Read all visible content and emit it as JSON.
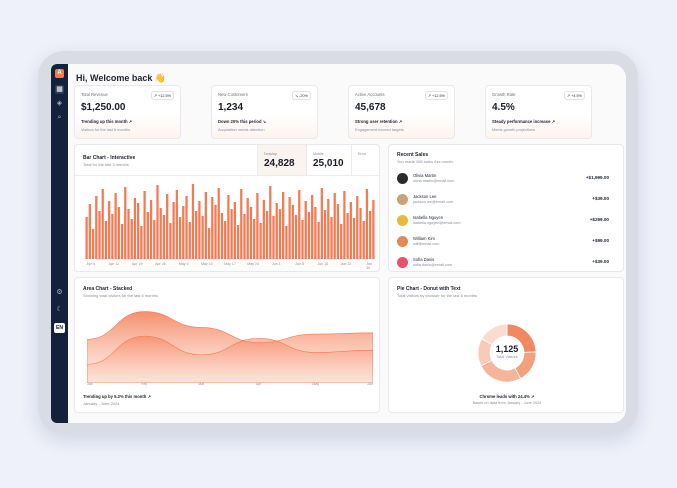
{
  "sidebar": {
    "logo": "A",
    "icons": [
      "grid-icon",
      "layers-icon",
      "search-icon",
      "settings-icon",
      "moon-icon"
    ],
    "lang": "EN"
  },
  "greeting": "Hi, Welcome back 👋",
  "stats": [
    {
      "label": "Total Revenue",
      "badge": "↗ +12.5%",
      "value": "$1,250.00",
      "trend": "Trending up this month ↗",
      "sub": "Visitors for the last 6 months"
    },
    {
      "label": "New Customers",
      "badge": "↘ -20%",
      "value": "1,234",
      "trend": "Down 20% this period ↘",
      "sub": "Acquisition needs attention"
    },
    {
      "label": "Active Accounts",
      "badge": "↗ +12.5%",
      "value": "45,678",
      "trend": "Strong user retention ↗",
      "sub": "Engagement exceed targets"
    },
    {
      "label": "Growth Rate",
      "badge": "↗ +4.5%",
      "value": "4.5%",
      "trend": "Steady performance increase ↗",
      "sub": "Meets growth projections"
    }
  ],
  "bar_card": {
    "title": "Bar Chart - Interactive",
    "subtitle": "Total for the last 3 months",
    "tabs": [
      {
        "key": "Desktop",
        "value": "24,828"
      },
      {
        "key": "Mobile",
        "value": "25,010"
      },
      {
        "key": "Error",
        "value": ""
      }
    ],
    "x_ticks": [
      "Apr 5",
      "Apr 12",
      "Apr 19",
      "Apr 26",
      "May 3",
      "May 10",
      "May 17",
      "May 24",
      "Jun 1",
      "Jun 8",
      "Jun 15",
      "Jun 22",
      "Jun 30"
    ]
  },
  "sales": {
    "title": "Recent Sales",
    "subtitle": "You made 265 sales this month.",
    "items": [
      {
        "name": "Olivia Martin",
        "email": "olivia.martin@email.com",
        "amount": "+$1,999.00",
        "color": "#2b2b2b"
      },
      {
        "name": "Jackson Lee",
        "email": "jackson.lee@email.com",
        "amount": "+$39.00",
        "color": "#c9a27a"
      },
      {
        "name": "Isabella Nguyen",
        "email": "isabella.nguyen@email.com",
        "amount": "+$299.00",
        "color": "#e5b93a"
      },
      {
        "name": "William Kim",
        "email": "will@email.com",
        "amount": "+$99.00",
        "color": "#e08a5a"
      },
      {
        "name": "Sofia Davis",
        "email": "sofia.davis@email.com",
        "amount": "+$39.00",
        "color": "#e9506a"
      }
    ]
  },
  "area_card": {
    "title": "Area Chart - Stacked",
    "subtitle": "Showing total visitors for the last 6 months",
    "x_ticks": [
      "Jan",
      "Feb",
      "Mar",
      "Apr",
      "May",
      "Jun"
    ],
    "trend": "Trending up by 5.2% this month ↗",
    "range": "January - June 2024"
  },
  "pie_card": {
    "title": "Pie Chart - Donut with Text",
    "subtitle": "Total visitors by browser for the last 6 months",
    "center_value": "1,125",
    "center_label": "Total Visitors",
    "trend": "Chrome leads with 24.4% ↗",
    "note": "Based on data from January - June 2024"
  },
  "colors": {
    "accent": "#f47a52",
    "accent_light": "#fbc7b3",
    "sidebar": "#13213b"
  },
  "chart_data": [
    {
      "type": "bar",
      "title": "Bar Chart - Interactive",
      "x_start": "Apr 1",
      "x_end": "Jun 30",
      "values": [
        42,
        55,
        30,
        63,
        48,
        70,
        38,
        58,
        45,
        66,
        52,
        35,
        72,
        50,
        40,
        61,
        56,
        33,
        68,
        47,
        59,
        39,
        74,
        51,
        44,
        65,
        36,
        57,
        69,
        42,
        53,
        63,
        37,
        75,
        48,
        58,
        43,
        67,
        31,
        62,
        54,
        71,
        46,
        38,
        64,
        50,
        57,
        34,
        70,
        45,
        61,
        52,
        40,
        66,
        36,
        59,
        48,
        73,
        43,
        56,
        50,
        67,
        33,
        62,
        54,
        44,
        69,
        39,
        58,
        47,
        64,
        52,
        37,
        71,
        49,
        60,
        42,
        66,
        55,
        35,
        68,
        46,
        57,
        41,
        63,
        51,
        38,
        70,
        48,
        59
      ],
      "ylim": [
        0,
        80
      ]
    },
    {
      "type": "area",
      "title": "Area Chart - Stacked",
      "categories": [
        "Jan",
        "Feb",
        "Mar",
        "Apr",
        "May",
        "Jun"
      ],
      "series": [
        {
          "values": [
            186,
            305,
            237,
            173,
            209,
            214
          ]
        },
        {
          "values": [
            80,
            200,
            120,
            190,
            130,
            140
          ]
        }
      ]
    },
    {
      "type": "pie",
      "title": "Pie Chart - Donut with Text",
      "values": [
        275,
        200,
        287,
        173,
        190
      ]
    }
  ]
}
